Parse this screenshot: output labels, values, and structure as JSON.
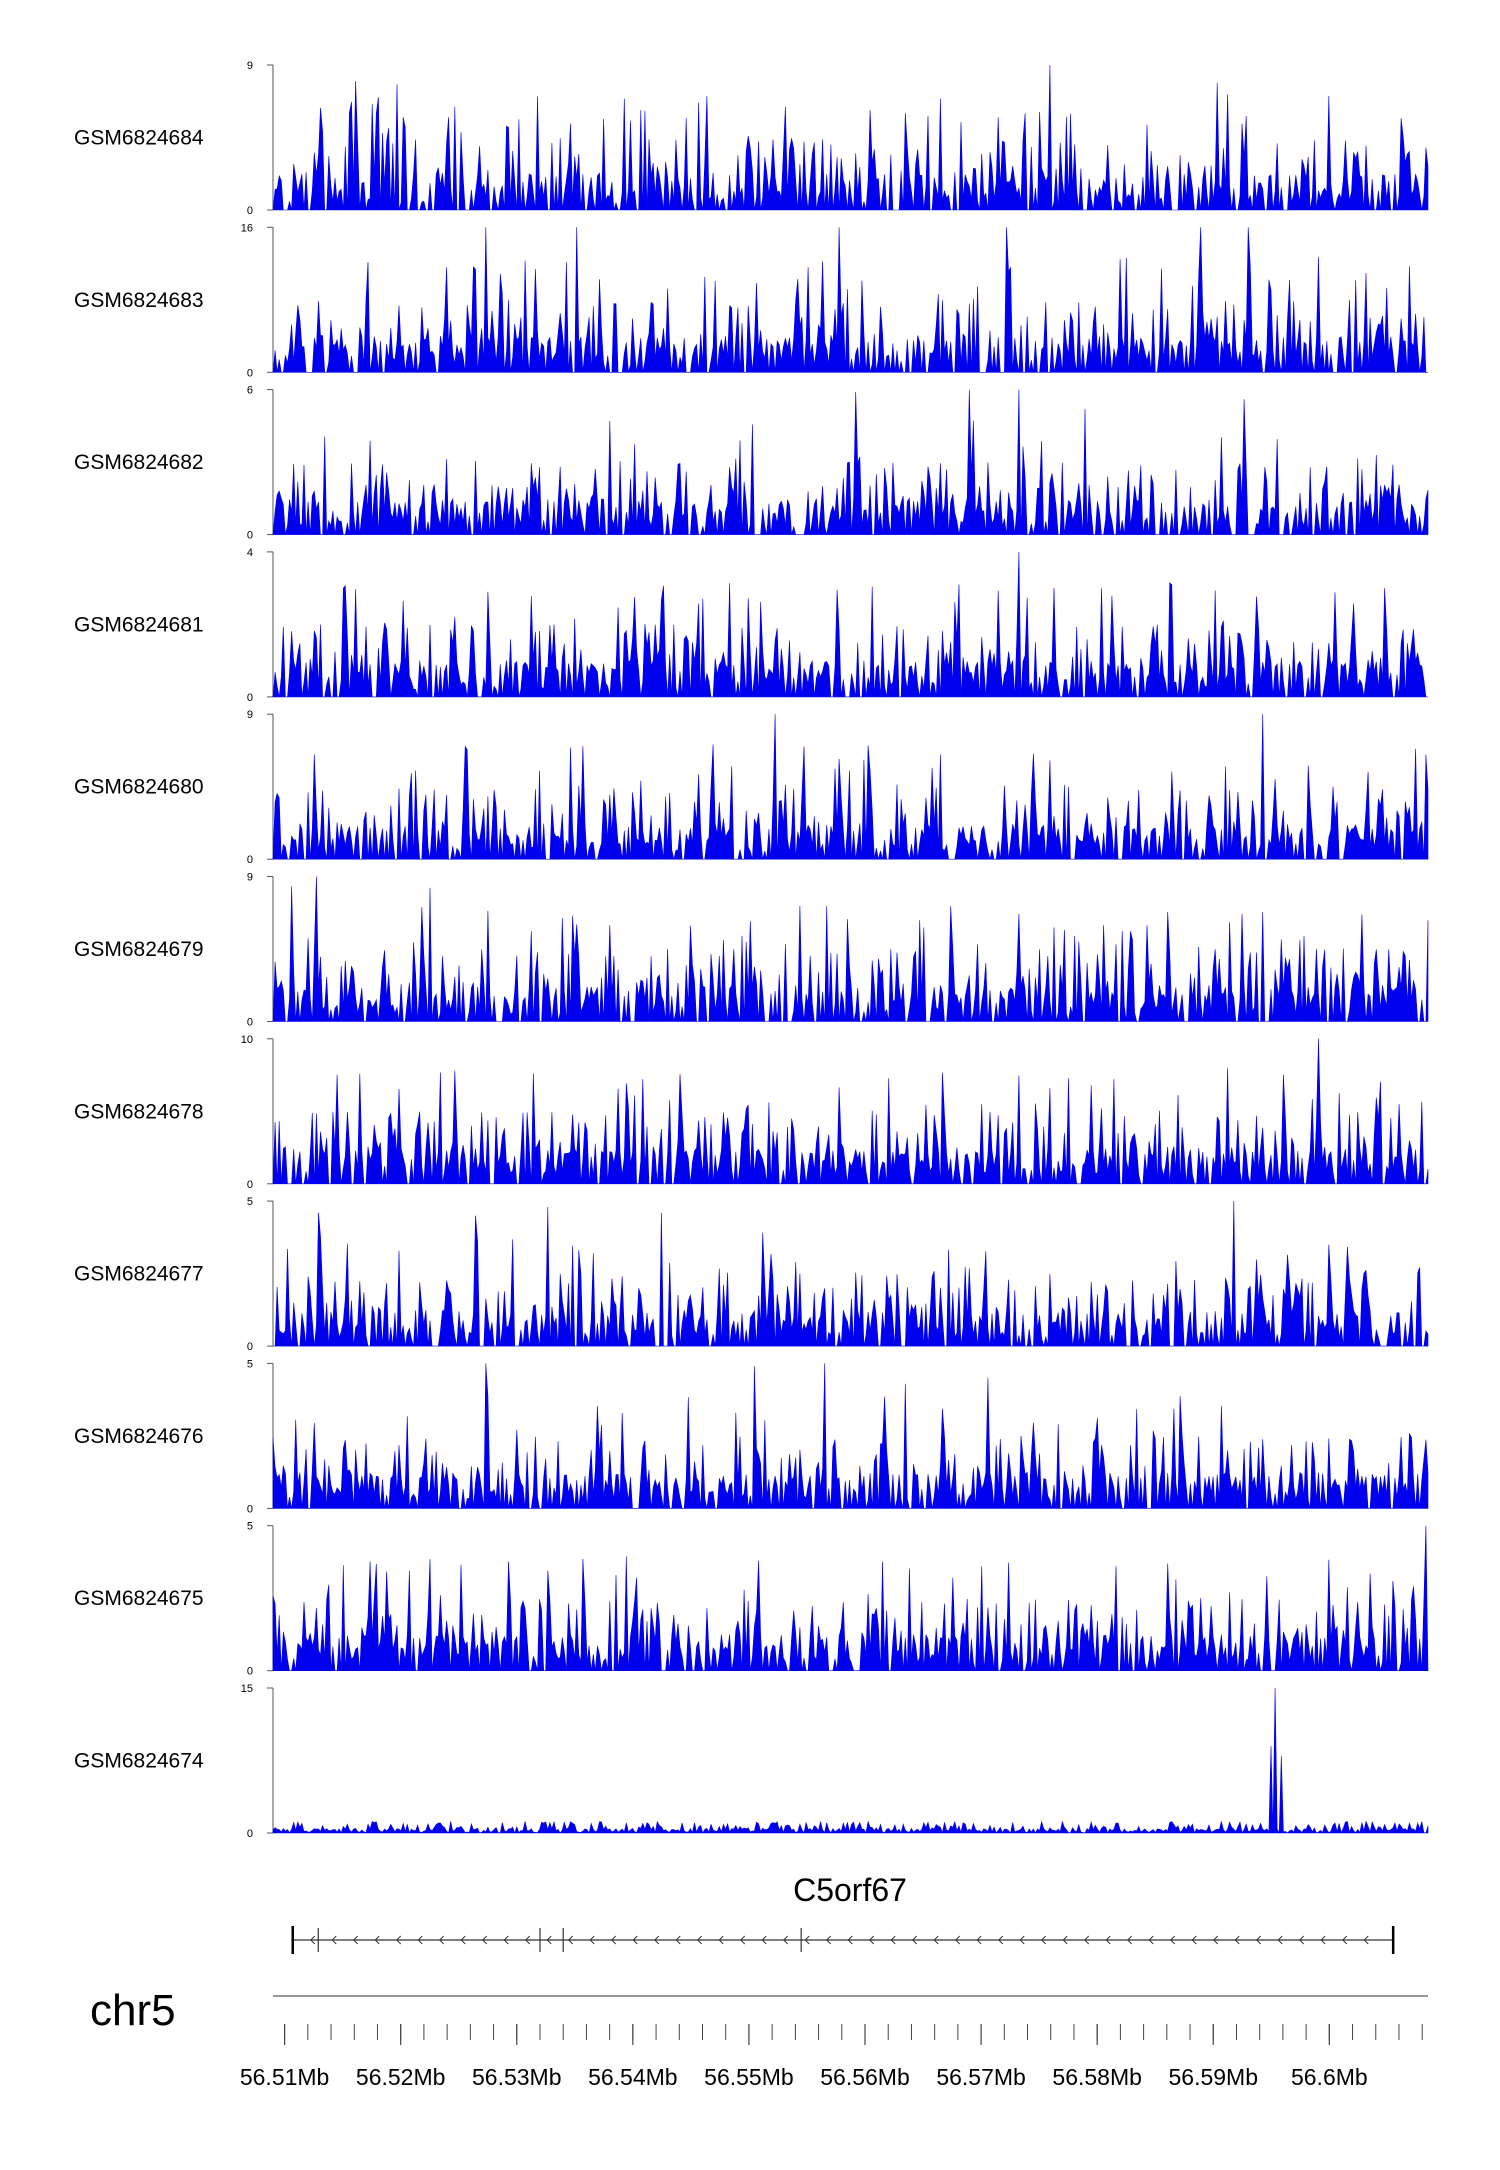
{
  "colors": {
    "signal": "#0000ee",
    "axis": "#555555",
    "text": "#000000",
    "gene": "#333333"
  },
  "chart_data": {
    "type": "area",
    "title": "",
    "xlabel": "",
    "ylabel": "",
    "chromosome": "chr5",
    "xlim": [
      56.509,
      56.6085
    ],
    "x_units": "Mb",
    "x_ticks": [
      "56.51Mb",
      "56.52Mb",
      "56.53Mb",
      "56.54Mb",
      "56.55Mb",
      "56.56Mb",
      "56.57Mb",
      "56.58Mb",
      "56.59Mb",
      "56.6Mb"
    ],
    "x_tick_values": [
      56.51,
      56.52,
      56.53,
      56.54,
      56.55,
      56.56,
      56.57,
      56.58,
      56.59,
      56.6
    ],
    "gene": {
      "name": "C5orf67",
      "strand": "-",
      "start": 56.5107,
      "end": 56.6055,
      "exon_marks": [
        56.5107,
        56.5129,
        56.532,
        56.534,
        56.5545,
        56.6055
      ]
    },
    "series": [
      {
        "name": "GSM6824684",
        "ymax": 9,
        "ymin": 0,
        "seed": 684,
        "peaks": [
          [
            56.5162,
            8
          ],
          [
            56.5197,
            7.8
          ],
          [
            56.5246,
            6.4
          ],
          [
            56.5406,
            6.2
          ],
          [
            56.5759,
            9
          ],
          [
            56.5903,
            7.9
          ]
        ]
      },
      {
        "name": "GSM6824683",
        "ymax": 16,
        "ymin": 0,
        "seed": 683,
        "peaks": [
          [
            56.5274,
            16
          ],
          [
            56.5351,
            16
          ],
          [
            56.5578,
            16
          ],
          [
            56.5721,
            16
          ],
          [
            56.589,
            16
          ],
          [
            56.593,
            16
          ]
        ]
      },
      {
        "name": "GSM6824682",
        "ymax": 6,
        "ymin": 0,
        "seed": 682,
        "peaks": [
          [
            56.5592,
            5.9
          ],
          [
            56.569,
            6
          ],
          [
            56.5733,
            6
          ],
          [
            56.5789,
            5.2
          ],
          [
            56.5927,
            5.6
          ]
        ]
      },
      {
        "name": "GSM6824681",
        "ymax": 4,
        "ymin": 0,
        "seed": 681,
        "peaks": [
          [
            56.5151,
            3
          ],
          [
            56.5275,
            2.9
          ],
          [
            56.5733,
            4
          ],
          [
            56.5803,
            3
          ],
          [
            56.6048,
            3
          ]
        ]
      },
      {
        "name": "GSM6824680",
        "ymax": 9,
        "ymin": 0,
        "seed": 680,
        "peaks": [
          [
            56.5523,
            9
          ],
          [
            56.5548,
            7
          ],
          [
            56.5665,
            6.5
          ],
          [
            56.5943,
            9
          ],
          [
            56.5256,
            7
          ]
        ]
      },
      {
        "name": "GSM6824679",
        "ymax": 9,
        "ymin": 0,
        "seed": 679,
        "peaks": [
          [
            56.5106,
            8.4
          ],
          [
            56.5128,
            9
          ],
          [
            56.5225,
            8.3
          ],
          [
            56.5829,
            5.6
          ],
          [
            56.586,
            6.8
          ],
          [
            56.5942,
            6.8
          ]
        ]
      },
      {
        "name": "GSM6824678",
        "ymax": 10,
        "ymin": 0,
        "seed": 678,
        "peaks": [
          [
            56.599,
            10
          ],
          [
            56.576,
            6.6
          ],
          [
            56.57,
            5.5
          ],
          [
            56.606,
            5.5
          ]
        ]
      },
      {
        "name": "GSM6824677",
        "ymax": 5,
        "ymin": 0,
        "seed": 677,
        "peaks": [
          [
            56.513,
            4.6
          ],
          [
            56.5265,
            4.5
          ],
          [
            56.5327,
            4.8
          ],
          [
            56.5425,
            4.6
          ],
          [
            56.5917,
            5
          ]
        ]
      },
      {
        "name": "GSM6824676",
        "ymax": 5,
        "ymin": 0,
        "seed": 676,
        "peaks": [
          [
            56.5274,
            5
          ],
          [
            56.5505,
            4.9
          ],
          [
            56.5565,
            5
          ],
          [
            56.5635,
            4.3
          ],
          [
            56.5706,
            4.5
          ]
        ]
      },
      {
        "name": "GSM6824675",
        "ymax": 5,
        "ymin": 0,
        "seed": 675,
        "peaks": [
          [
            56.6084,
            5
          ],
          [
            56.5385,
            3.3
          ],
          [
            56.5675,
            3.2
          ],
          [
            56.5234,
            2.6
          ],
          [
            56.5305,
            2.4
          ]
        ]
      },
      {
        "name": "GSM6824674",
        "ymax": 15,
        "ymin": 0,
        "seed": 674,
        "peaks": [
          [
            56.5954,
            15
          ],
          [
            56.595,
            9
          ],
          [
            56.5958,
            8
          ]
        ]
      }
    ]
  }
}
